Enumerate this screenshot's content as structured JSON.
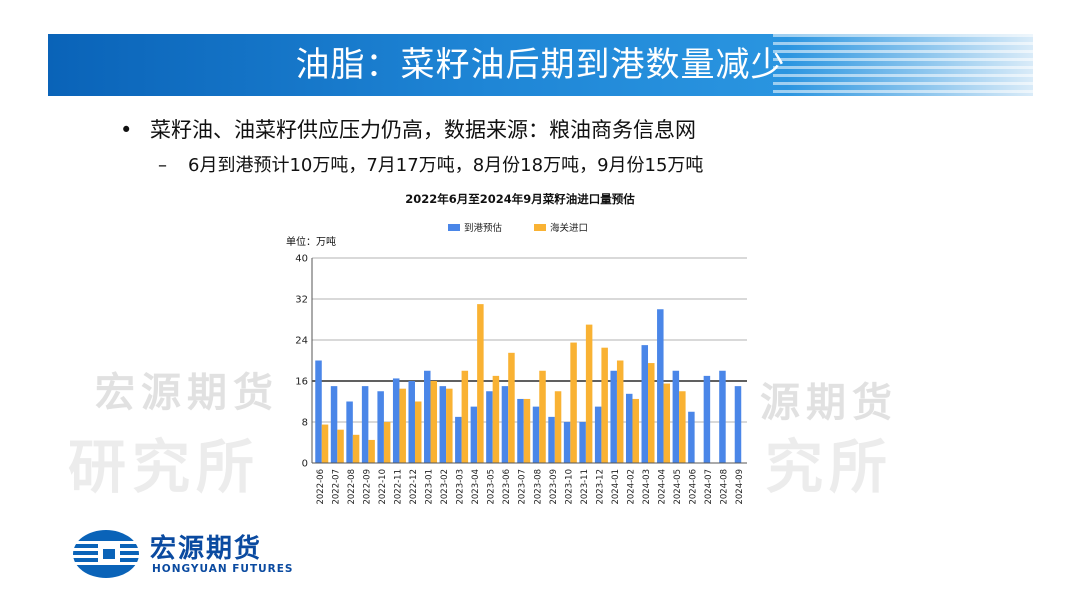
{
  "slide": {
    "title": "油脂：菜籽油后期到港数量减少",
    "bullet_main": "菜籽油、油菜籽供应压力仍高，数据来源：粮油商务信息网",
    "bullet_sub": "6月到港预计10万吨，7月17万吨，8月份18万吨，9月份15万吨",
    "bullet_symbol": "•",
    "sub_symbol": "–"
  },
  "watermark": {
    "line1": "宏源期货",
    "line2": "研究所",
    "line1_right": "源期货",
    "line2_right": "究所"
  },
  "logo": {
    "name_cn": "宏源期货",
    "name_en": "HONGYUAN FUTURES"
  },
  "colors": {
    "series_arrival": "#4a86e8",
    "series_customs": "#f9b233",
    "title_bar": "#1f86d6",
    "logo": "#0a4aa0"
  },
  "chart_data": {
    "type": "bar",
    "title": "2022年6月至2024年9月菜籽油进口量预估",
    "unit_label": "单位：万吨",
    "ylim": [
      0,
      40
    ],
    "yticks": [
      0,
      8,
      16,
      24,
      32,
      40
    ],
    "reference_line": 16,
    "legend_position": "top-center",
    "categories": [
      "2022-06",
      "2022-07",
      "2022-08",
      "2022-09",
      "2022-10",
      "2022-11",
      "2022-12",
      "2023-01",
      "2023-02",
      "2023-03",
      "2023-04",
      "2023-05",
      "2023-06",
      "2023-07",
      "2023-08",
      "2023-09",
      "2023-10",
      "2023-11",
      "2023-12",
      "2024-01",
      "2024-02",
      "2024-03",
      "2024-04",
      "2024-05",
      "2024-06",
      "2024-07",
      "2024-08",
      "2024-09"
    ],
    "series": [
      {
        "name": "到港预估",
        "values": [
          20,
          15,
          12,
          15,
          14,
          16.5,
          16,
          18,
          15,
          9,
          11,
          14,
          15,
          12.5,
          11,
          9,
          8,
          8,
          11,
          18,
          13.5,
          23,
          30,
          18,
          10,
          17,
          18,
          15
        ]
      },
      {
        "name": "海关进口",
        "values": [
          7.5,
          6.5,
          5.5,
          4.5,
          8,
          14.5,
          12,
          16,
          14.5,
          18,
          31,
          17,
          21.5,
          12.5,
          18,
          14,
          23.5,
          27,
          22.5,
          20,
          12.5,
          19.5,
          15.5,
          14,
          null,
          null,
          null,
          null
        ]
      }
    ]
  }
}
